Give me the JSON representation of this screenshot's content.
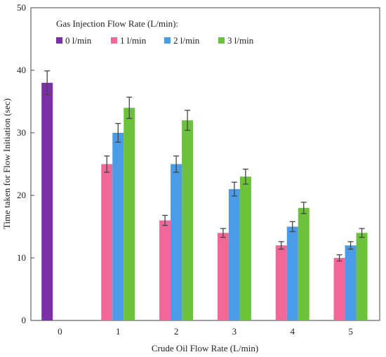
{
  "chart_data": {
    "type": "bar",
    "xlabel": "Crude Oil Flow Rate (L/min)",
    "ylabel": "Time taken for Flow Initiation (sec)",
    "legend_title": "Gas Injection Flow Rate (L/min):",
    "legend_position": "top-left",
    "categories": [
      "0",
      "1",
      "2",
      "3",
      "4",
      "5"
    ],
    "ylim": [
      0,
      50
    ],
    "yticks": [
      0,
      10,
      20,
      30,
      40,
      50
    ],
    "grid": false,
    "error_bars": true,
    "series": [
      {
        "name": "0 l/min",
        "color": "#7b2fa8",
        "values": [
          38,
          null,
          null,
          null,
          null,
          null
        ],
        "errors": [
          1.9,
          null,
          null,
          null,
          null,
          null
        ]
      },
      {
        "name": "1 l/min",
        "color": "#f2669a",
        "values": [
          null,
          25,
          16,
          14,
          12,
          10
        ],
        "errors": [
          null,
          1.3,
          0.8,
          0.7,
          0.6,
          0.5
        ]
      },
      {
        "name": "2 l/min",
        "color": "#4a9be8",
        "values": [
          null,
          30,
          25,
          21,
          15,
          12
        ],
        "errors": [
          null,
          1.5,
          1.3,
          1.1,
          0.8,
          0.6
        ]
      },
      {
        "name": "3 l/min",
        "color": "#6cc23a",
        "values": [
          null,
          34,
          32,
          23,
          18,
          14
        ],
        "errors": [
          null,
          1.7,
          1.6,
          1.2,
          0.9,
          0.7
        ]
      }
    ]
  }
}
